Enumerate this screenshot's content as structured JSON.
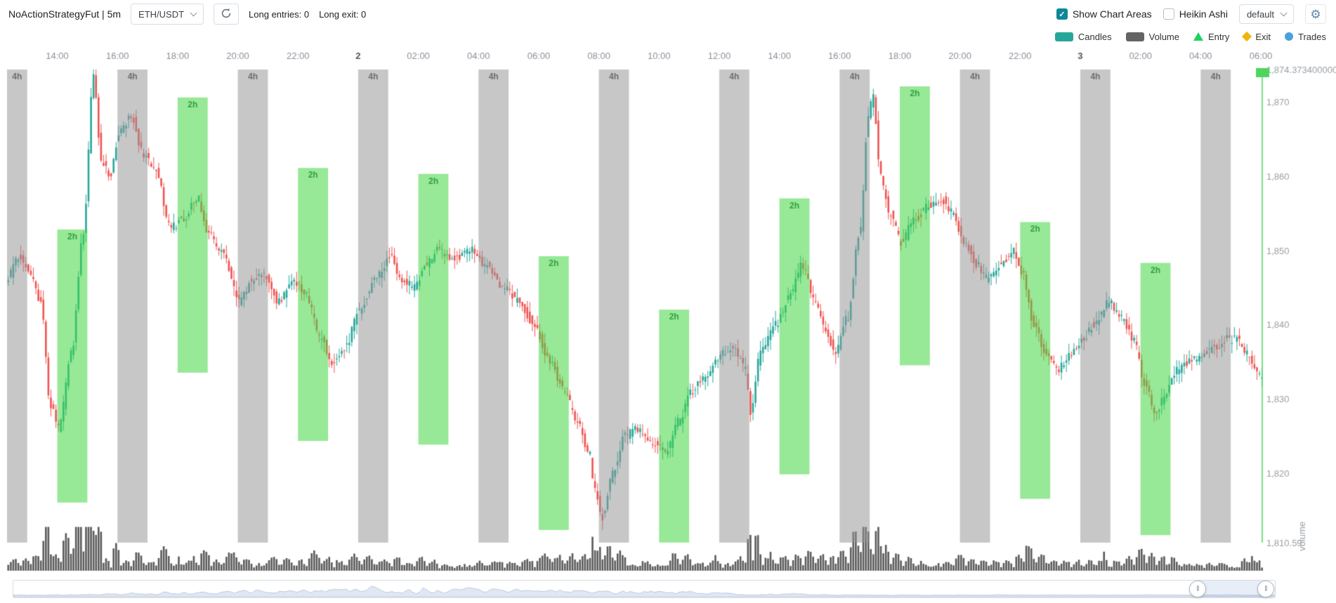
{
  "header": {
    "title": "NoActionStrategyFut | 5m",
    "pair_select": {
      "value": "ETH/USDT"
    },
    "stats": {
      "long_entries": "Long entries: 0",
      "long_exit": "Long exit: 0"
    },
    "show_chart_areas": {
      "label": "Show Chart Areas",
      "checked": true
    },
    "heikin_ashi": {
      "label": "Heikin Ashi",
      "checked": false
    },
    "plot_config_select": {
      "value": "default"
    }
  },
  "icons": {
    "check": "✓",
    "gear": "⚙",
    "handle_grip": "‖"
  },
  "legend": {
    "items": [
      {
        "id": "candles",
        "label": "Candles",
        "color": "#26a69a",
        "shape": "rect"
      },
      {
        "id": "volume",
        "label": "Volume",
        "color": "#646464",
        "shape": "rect"
      },
      {
        "id": "entry",
        "label": "Entry",
        "color": "#1fd25b",
        "shape": "triangle"
      },
      {
        "id": "exit",
        "label": "Exit",
        "color": "#eeb60c",
        "shape": "diamond"
      },
      {
        "id": "trades",
        "label": "Trades",
        "color": "#4aa0dc",
        "shape": "circle"
      }
    ]
  },
  "colors": {
    "accent_teal": "#0e8796",
    "candle_up": "#26a69a",
    "candle_down": "#ef5350",
    "volume_bar": "#5a5a5a",
    "band_4h_fill": "rgba(148,148,148,0.52)",
    "band_4h_label": "rgba(92,92,92,0.85)",
    "band_2h_fill": "rgba(66,214,66,0.55)",
    "band_2h_label": "rgba(40,152,52,0.9)",
    "current_price_line": "#4fd45e",
    "axis_label": "#9aa0a6",
    "axis_label_bold": "#4d525a",
    "gear_icon": "#5e87ad"
  },
  "chart_data": {
    "type": "candlestick",
    "pair": "ETH/USDT",
    "timeframe": "5m",
    "x_start_hour": 12.33,
    "x_end_hour": 54,
    "x_ticks": [
      {
        "hour": 14,
        "label": "14:00"
      },
      {
        "hour": 16,
        "label": "16:00"
      },
      {
        "hour": 18,
        "label": "18:00"
      },
      {
        "hour": 20,
        "label": "20:00"
      },
      {
        "hour": 22,
        "label": "22:00"
      },
      {
        "hour": 24,
        "label": "2",
        "bold": true
      },
      {
        "hour": 26,
        "label": "02:00"
      },
      {
        "hour": 28,
        "label": "04:00"
      },
      {
        "hour": 30,
        "label": "06:00"
      },
      {
        "hour": 32,
        "label": "08:00"
      },
      {
        "hour": 34,
        "label": "10:00"
      },
      {
        "hour": 36,
        "label": "12:00"
      },
      {
        "hour": 38,
        "label": "14:00"
      },
      {
        "hour": 40,
        "label": "16:00"
      },
      {
        "hour": 42,
        "label": "18:00"
      },
      {
        "hour": 44,
        "label": "20:00"
      },
      {
        "hour": 46,
        "label": "22:00"
      },
      {
        "hour": 48,
        "label": "3",
        "bold": true
      },
      {
        "hour": 50,
        "label": "02:00"
      },
      {
        "hour": 52,
        "label": "04:00"
      },
      {
        "hour": 54,
        "label": "06:00"
      }
    ],
    "y_axis": {
      "max": 1874.3734,
      "min": 1810.59,
      "max_label": "1,874.373400000",
      "min_label": "1,810.59",
      "ticks": [
        {
          "value": 1870,
          "label": "1,870"
        },
        {
          "value": 1860,
          "label": "1,860"
        },
        {
          "value": 1850,
          "label": "1,850"
        },
        {
          "value": 1840,
          "label": "1,840"
        },
        {
          "value": 1830,
          "label": "1,830"
        },
        {
          "value": 1820,
          "label": "1,820"
        }
      ]
    },
    "volume_axis_label": "volume",
    "bands_4h": {
      "label": "4h",
      "duration_hours": 1,
      "start_hours": [
        12,
        16,
        20,
        24,
        28,
        32,
        36,
        40,
        44,
        48,
        52
      ]
    },
    "bands_2h": {
      "label": "2h",
      "duration_hours": 1,
      "bands": [
        {
          "start_hour": 14,
          "high": 1852.8,
          "low": 1816.0
        },
        {
          "start_hour": 18,
          "high": 1870.6,
          "low": 1833.5
        },
        {
          "start_hour": 22,
          "high": 1861.1,
          "low": 1824.3
        },
        {
          "start_hour": 26,
          "high": 1860.3,
          "low": 1823.8
        },
        {
          "start_hour": 30,
          "high": 1849.2,
          "low": 1812.3
        },
        {
          "start_hour": 34,
          "high": 1842.0,
          "low": 1810.6
        },
        {
          "start_hour": 38,
          "high": 1857.0,
          "low": 1819.8
        },
        {
          "start_hour": 42,
          "high": 1872.1,
          "low": 1834.5
        },
        {
          "start_hour": 46,
          "high": 1853.8,
          "low": 1816.5
        },
        {
          "start_hour": 50,
          "high": 1848.3,
          "low": 1811.6
        }
      ]
    },
    "price_keypoints": [
      [
        12.33,
        1846
      ],
      [
        12.8,
        1849
      ],
      [
        13.1,
        1847
      ],
      [
        13.5,
        1843
      ],
      [
        13.8,
        1829
      ],
      [
        14.1,
        1826
      ],
      [
        14.5,
        1836
      ],
      [
        14.9,
        1852
      ],
      [
        15.25,
        1874
      ],
      [
        15.5,
        1862
      ],
      [
        15.8,
        1860
      ],
      [
        16.1,
        1866
      ],
      [
        16.5,
        1868
      ],
      [
        16.9,
        1863
      ],
      [
        17.3,
        1861
      ],
      [
        17.8,
        1853
      ],
      [
        18.2,
        1854
      ],
      [
        18.7,
        1857
      ],
      [
        19.1,
        1852
      ],
      [
        19.5,
        1850
      ],
      [
        20.1,
        1843
      ],
      [
        20.5,
        1846
      ],
      [
        20.9,
        1847
      ],
      [
        21.4,
        1843
      ],
      [
        21.9,
        1846
      ],
      [
        22.3,
        1844
      ],
      [
        22.8,
        1838
      ],
      [
        23.2,
        1835
      ],
      [
        23.6,
        1837
      ],
      [
        24.1,
        1842
      ],
      [
        24.6,
        1846
      ],
      [
        25.1,
        1849
      ],
      [
        25.5,
        1846
      ],
      [
        25.9,
        1845
      ],
      [
        26.3,
        1848
      ],
      [
        26.7,
        1850
      ],
      [
        27.2,
        1849
      ],
      [
        27.8,
        1850
      ],
      [
        28.3,
        1848
      ],
      [
        28.9,
        1845
      ],
      [
        29.4,
        1843
      ],
      [
        29.9,
        1840
      ],
      [
        30.4,
        1835
      ],
      [
        30.9,
        1831
      ],
      [
        31.3,
        1827
      ],
      [
        31.7,
        1823
      ],
      [
        31.9,
        1818
      ],
      [
        32.15,
        1814
      ],
      [
        32.5,
        1820
      ],
      [
        32.9,
        1825
      ],
      [
        33.3,
        1826
      ],
      [
        33.8,
        1824
      ],
      [
        34.3,
        1823
      ],
      [
        34.7,
        1827
      ],
      [
        35.1,
        1831
      ],
      [
        35.6,
        1833
      ],
      [
        36.1,
        1836
      ],
      [
        36.5,
        1837
      ],
      [
        36.9,
        1834
      ],
      [
        37.1,
        1828
      ],
      [
        37.4,
        1836
      ],
      [
        37.9,
        1840
      ],
      [
        38.4,
        1844
      ],
      [
        38.8,
        1848
      ],
      [
        39.2,
        1843
      ],
      [
        39.6,
        1839
      ],
      [
        39.9,
        1836
      ],
      [
        40.3,
        1841
      ],
      [
        40.7,
        1852
      ],
      [
        41.0,
        1868
      ],
      [
        41.15,
        1871
      ],
      [
        41.4,
        1860
      ],
      [
        41.7,
        1855
      ],
      [
        42.1,
        1851
      ],
      [
        42.5,
        1854
      ],
      [
        43.0,
        1856
      ],
      [
        43.4,
        1857
      ],
      [
        43.8,
        1855
      ],
      [
        44.2,
        1851
      ],
      [
        44.6,
        1848
      ],
      [
        45.0,
        1846
      ],
      [
        45.4,
        1848
      ],
      [
        45.8,
        1850
      ],
      [
        46.1,
        1847
      ],
      [
        46.5,
        1840
      ],
      [
        46.9,
        1836
      ],
      [
        47.3,
        1834
      ],
      [
        47.7,
        1836
      ],
      [
        48.1,
        1838
      ],
      [
        48.5,
        1840
      ],
      [
        49.0,
        1843
      ],
      [
        49.4,
        1841
      ],
      [
        49.8,
        1838
      ],
      [
        50.2,
        1832
      ],
      [
        50.55,
        1828
      ],
      [
        50.9,
        1831
      ],
      [
        51.3,
        1834
      ],
      [
        51.7,
        1835
      ],
      [
        52.1,
        1836
      ],
      [
        52.5,
        1837
      ],
      [
        52.9,
        1838
      ],
      [
        53.3,
        1838
      ],
      [
        53.6,
        1836
      ],
      [
        53.85,
        1834
      ],
      [
        54.0,
        1833
      ]
    ]
  },
  "datazoom": {
    "handles_pct": [
      93.9,
      99.3
    ]
  }
}
